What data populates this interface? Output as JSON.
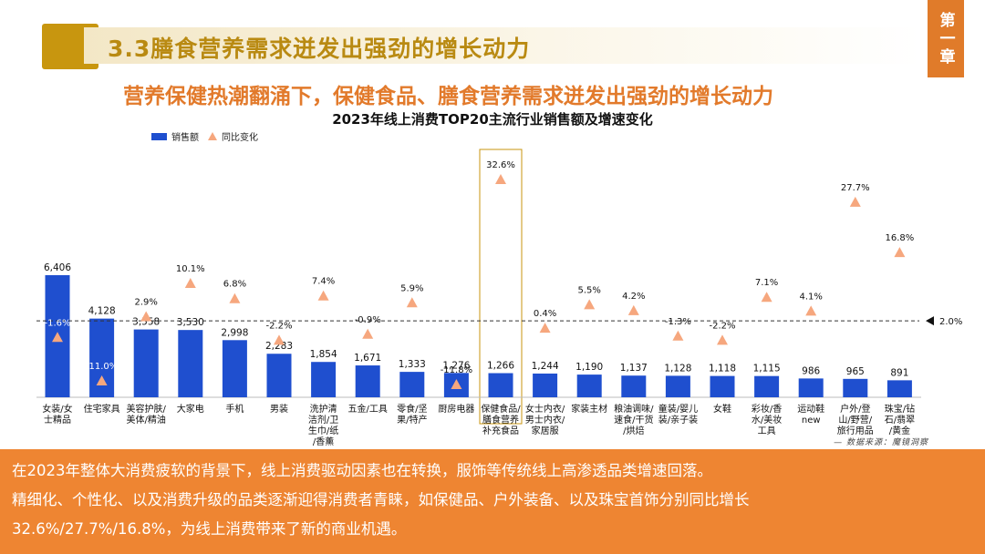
{
  "header": {
    "title": "3.3膳食营养需求迸发出强劲的增长动力",
    "chapter": "第一章",
    "subtitle": "营养保健热潮翻涌下，保健食品、膳食营养需求迸发出强劲的增长动力"
  },
  "chart_data": {
    "type": "bar",
    "title": "2023年线上消费TOP20主流行业销售额及增速变化",
    "legend": [
      "销售额",
      "同比变化"
    ],
    "categories": [
      "女装/女士精品",
      "住宅家具",
      "美容护肤/美体/精油",
      "大家电",
      "手机",
      "男装",
      "洗护清洁剂/卫生巾/纸/香薰",
      "五金/工具",
      "零食/坚果/特产",
      "厨房电器",
      "保健食品/膳食营养补充食品",
      "女士内衣/男士内衣/家居服",
      "家装主材",
      "粮油调味/速食/干货/烘焙",
      "童装/婴儿装/亲子装",
      "女鞋",
      "彩妆/香水/美妆工具",
      "运动鞋new",
      "户外/登山/野营/旅行用品",
      "珠宝/钻石/翡翠/黄金"
    ],
    "category_label_lines": [
      [
        "女装/女",
        "士精品"
      ],
      [
        "住宅家具"
      ],
      [
        "美容护肤/",
        "美体/精油"
      ],
      [
        "大家电"
      ],
      [
        "手机"
      ],
      [
        "男装"
      ],
      [
        "洗护清",
        "洁剂/卫",
        "生巾/纸",
        "/香薰"
      ],
      [
        "五金/工具"
      ],
      [
        "零食/坚",
        "果/特产"
      ],
      [
        "厨房电器"
      ],
      [
        "保健食品/",
        "膳食营养",
        "补充食品"
      ],
      [
        "女士内衣/",
        "男士内衣/",
        "家居服"
      ],
      [
        "家装主材"
      ],
      [
        "粮油调味/",
        "速食/干货",
        "/烘焙"
      ],
      [
        "童装/婴儿",
        "装/亲子装"
      ],
      [
        "女鞋"
      ],
      [
        "彩妆/香",
        "水/美妆",
        "工具"
      ],
      [
        "运动鞋",
        "new"
      ],
      [
        "户外/登",
        "山/野营/",
        "旅行用品"
      ],
      [
        "珠宝/钻",
        "石/翡翠",
        "/黄金"
      ]
    ],
    "series": [
      {
        "name": "销售额",
        "values": [
          6406,
          4128,
          3558,
          3530,
          2998,
          2283,
          1854,
          1671,
          1333,
          1276,
          1266,
          1244,
          1190,
          1137,
          1128,
          1118,
          1115,
          986,
          965,
          891
        ],
        "labels": [
          "6,406",
          "4,128",
          "3,558",
          "3,530",
          "2,998",
          "2,283",
          "1,854",
          "1,671",
          "1,333",
          "1,276",
          "1,266",
          "1,244",
          "1,190",
          "1,137",
          "1,128",
          "1,118",
          "1,115",
          "986",
          "965",
          "891"
        ]
      },
      {
        "name": "同比变化",
        "values": [
          -1.6,
          -11.0,
          2.9,
          10.1,
          6.8,
          -2.2,
          7.4,
          -0.9,
          5.9,
          -11.8,
          32.6,
          0.4,
          5.5,
          4.2,
          -1.3,
          -2.2,
          7.1,
          4.1,
          27.7,
          16.8
        ],
        "labels": [
          "-1.6%",
          "-11.0%",
          "2.9%",
          "10.1%",
          "6.8%",
          "-2.2%",
          "7.4%",
          "-0.9%",
          "5.9%",
          "-11.8%",
          "32.6%",
          "0.4%",
          "5.5%",
          "4.2%",
          "-1.3%",
          "-2.2%",
          "7.1%",
          "4.1%",
          "27.7%",
          "16.8%"
        ]
      }
    ],
    "reference_line": {
      "value": 2.0,
      "label": "2.0%"
    },
    "highlight_category": "保健食品/膳食营养补充食品",
    "colors": {
      "bar": "#1f4fcf",
      "marker": "#f6a77e",
      "highlight_border": "#c8960f",
      "reference": "#333333"
    }
  },
  "source": "— 数据来源：魔镜洞察",
  "footer": {
    "line1": "在2023年整体大消费疲软的背景下，线上消费驱动因素也在转换，服饰等传统线上高渗透品类增速回落。",
    "line2": "精细化、个性化、以及消费升级的品类逐渐迎得消费者青睐，如保健品、户外装备、以及珠宝首饰分别同比增长",
    "line3": "32.6%/27.7%/16.8%，为线上消费带来了新的商业机遇。"
  }
}
